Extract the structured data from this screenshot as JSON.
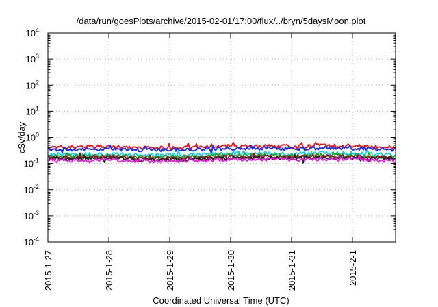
{
  "chart_data": {
    "type": "line",
    "title": "/data/run/goesPlots/archive/2015-02-01/17:00/flux/../bryn/5daysMoon.plot",
    "xlabel": "Coordinated Universal Time (UTC)",
    "ylabel": "cSv/day",
    "yscale": "log",
    "ylim": [
      0.0001,
      10000
    ],
    "yticks": [
      {
        "value": 0.0001,
        "base": "10",
        "exp": "-4"
      },
      {
        "value": 0.001,
        "base": "10",
        "exp": "-3"
      },
      {
        "value": 0.01,
        "base": "10",
        "exp": "-2"
      },
      {
        "value": 0.1,
        "base": "10",
        "exp": "-1"
      },
      {
        "value": 1,
        "base": "10",
        "exp": "0"
      },
      {
        "value": 10,
        "base": "10",
        "exp": "1"
      },
      {
        "value": 100,
        "base": "10",
        "exp": "2"
      },
      {
        "value": 1000,
        "base": "10",
        "exp": "3"
      },
      {
        "value": 10000,
        "base": "10",
        "exp": "4"
      }
    ],
    "xlim": [
      "2015-01-27T00:00",
      "2015-02-01T17:00"
    ],
    "xticks": [
      {
        "value": "2015-01-27T00:00",
        "label": "2015-1-27"
      },
      {
        "value": "2015-01-28T00:00",
        "label": "2015-1-28"
      },
      {
        "value": "2015-01-29T00:00",
        "label": "2015-1-29"
      },
      {
        "value": "2015-01-30T00:00",
        "label": "2015-1-30"
      },
      {
        "value": "2015-01-31T00:00",
        "label": "2015-1-31"
      },
      {
        "value": "2015-02-01T00:00",
        "label": "2015-2-1"
      }
    ],
    "grid": true,
    "legend": "none",
    "series": [
      {
        "color": "#e8191c",
        "x": [
          "2015-01-27T00:00",
          "2015-01-27T12:00",
          "2015-01-28T00:00",
          "2015-01-28T12:00",
          "2015-01-29T00:00",
          "2015-01-29T12:00",
          "2015-01-30T00:00",
          "2015-01-30T12:00",
          "2015-01-31T00:00",
          "2015-01-31T12:00",
          "2015-02-01T00:00",
          "2015-02-01T12:00",
          "2015-02-01T17:00"
        ],
        "y": [
          0.42,
          0.43,
          0.45,
          0.4,
          0.4,
          0.43,
          0.47,
          0.47,
          0.45,
          0.49,
          0.47,
          0.43,
          0.4
        ]
      },
      {
        "color": "#1c2fe8",
        "x": [
          "2015-01-27T00:00",
          "2015-01-27T12:00",
          "2015-01-28T00:00",
          "2015-01-28T12:00",
          "2015-01-29T00:00",
          "2015-01-29T12:00",
          "2015-01-30T00:00",
          "2015-01-30T12:00",
          "2015-01-31T00:00",
          "2015-01-31T12:00",
          "2015-02-01T00:00",
          "2015-02-01T12:00",
          "2015-02-01T17:00"
        ],
        "y": [
          0.34,
          0.35,
          0.36,
          0.33,
          0.33,
          0.35,
          0.38,
          0.38,
          0.36,
          0.39,
          0.38,
          0.35,
          0.33
        ]
      },
      {
        "color": "#19d2e8",
        "x": [
          "2015-01-27T00:00",
          "2015-01-27T12:00",
          "2015-01-28T00:00",
          "2015-01-28T12:00",
          "2015-01-29T00:00",
          "2015-01-29T12:00",
          "2015-01-30T00:00",
          "2015-01-30T12:00",
          "2015-01-31T00:00",
          "2015-01-31T12:00",
          "2015-02-01T00:00",
          "2015-02-01T12:00",
          "2015-02-01T17:00"
        ],
        "y": [
          0.22,
          0.22,
          0.23,
          0.21,
          0.21,
          0.22,
          0.24,
          0.24,
          0.23,
          0.25,
          0.24,
          0.22,
          0.21
        ]
      },
      {
        "color": "#2ca02c",
        "x": [
          "2015-01-27T00:00",
          "2015-01-27T12:00",
          "2015-01-28T00:00",
          "2015-01-28T12:00",
          "2015-01-29T00:00",
          "2015-01-29T12:00",
          "2015-01-30T00:00",
          "2015-01-30T12:00",
          "2015-01-31T00:00",
          "2015-01-31T12:00",
          "2015-02-01T00:00",
          "2015-02-01T12:00",
          "2015-02-01T17:00"
        ],
        "y": [
          0.19,
          0.19,
          0.2,
          0.18,
          0.18,
          0.19,
          0.21,
          0.21,
          0.2,
          0.21,
          0.21,
          0.19,
          0.18
        ]
      },
      {
        "color": "#8b1a1a",
        "x": [
          "2015-01-27T00:00",
          "2015-01-27T12:00",
          "2015-01-28T00:00",
          "2015-01-28T12:00",
          "2015-01-29T00:00",
          "2015-01-29T12:00",
          "2015-01-30T00:00",
          "2015-01-30T12:00",
          "2015-01-31T00:00",
          "2015-01-31T12:00",
          "2015-02-01T00:00",
          "2015-02-01T12:00",
          "2015-02-01T17:00"
        ],
        "y": [
          0.17,
          0.17,
          0.18,
          0.16,
          0.16,
          0.17,
          0.18,
          0.18,
          0.18,
          0.19,
          0.18,
          0.17,
          0.16
        ]
      },
      {
        "color": "#222222",
        "x": [
          "2015-01-27T00:00",
          "2015-01-27T12:00",
          "2015-01-28T00:00",
          "2015-01-28T12:00",
          "2015-01-29T00:00",
          "2015-01-29T12:00",
          "2015-01-30T00:00",
          "2015-01-30T12:00",
          "2015-01-31T00:00",
          "2015-01-31T12:00",
          "2015-02-01T00:00",
          "2015-02-01T12:00",
          "2015-02-01T17:00"
        ],
        "y": [
          0.15,
          0.15,
          0.16,
          0.14,
          0.14,
          0.15,
          0.16,
          0.16,
          0.16,
          0.17,
          0.16,
          0.15,
          0.14
        ]
      },
      {
        "color": "#e81ce0",
        "x": [
          "2015-01-27T00:00",
          "2015-01-27T12:00",
          "2015-01-28T00:00",
          "2015-01-28T12:00",
          "2015-01-29T00:00",
          "2015-01-29T12:00",
          "2015-01-30T00:00",
          "2015-01-30T12:00",
          "2015-01-31T00:00",
          "2015-01-31T12:00",
          "2015-02-01T00:00",
          "2015-02-01T12:00",
          "2015-02-01T17:00"
        ],
        "y": [
          0.13,
          0.13,
          0.14,
          0.125,
          0.125,
          0.13,
          0.145,
          0.145,
          0.14,
          0.15,
          0.145,
          0.13,
          0.125
        ]
      }
    ]
  }
}
